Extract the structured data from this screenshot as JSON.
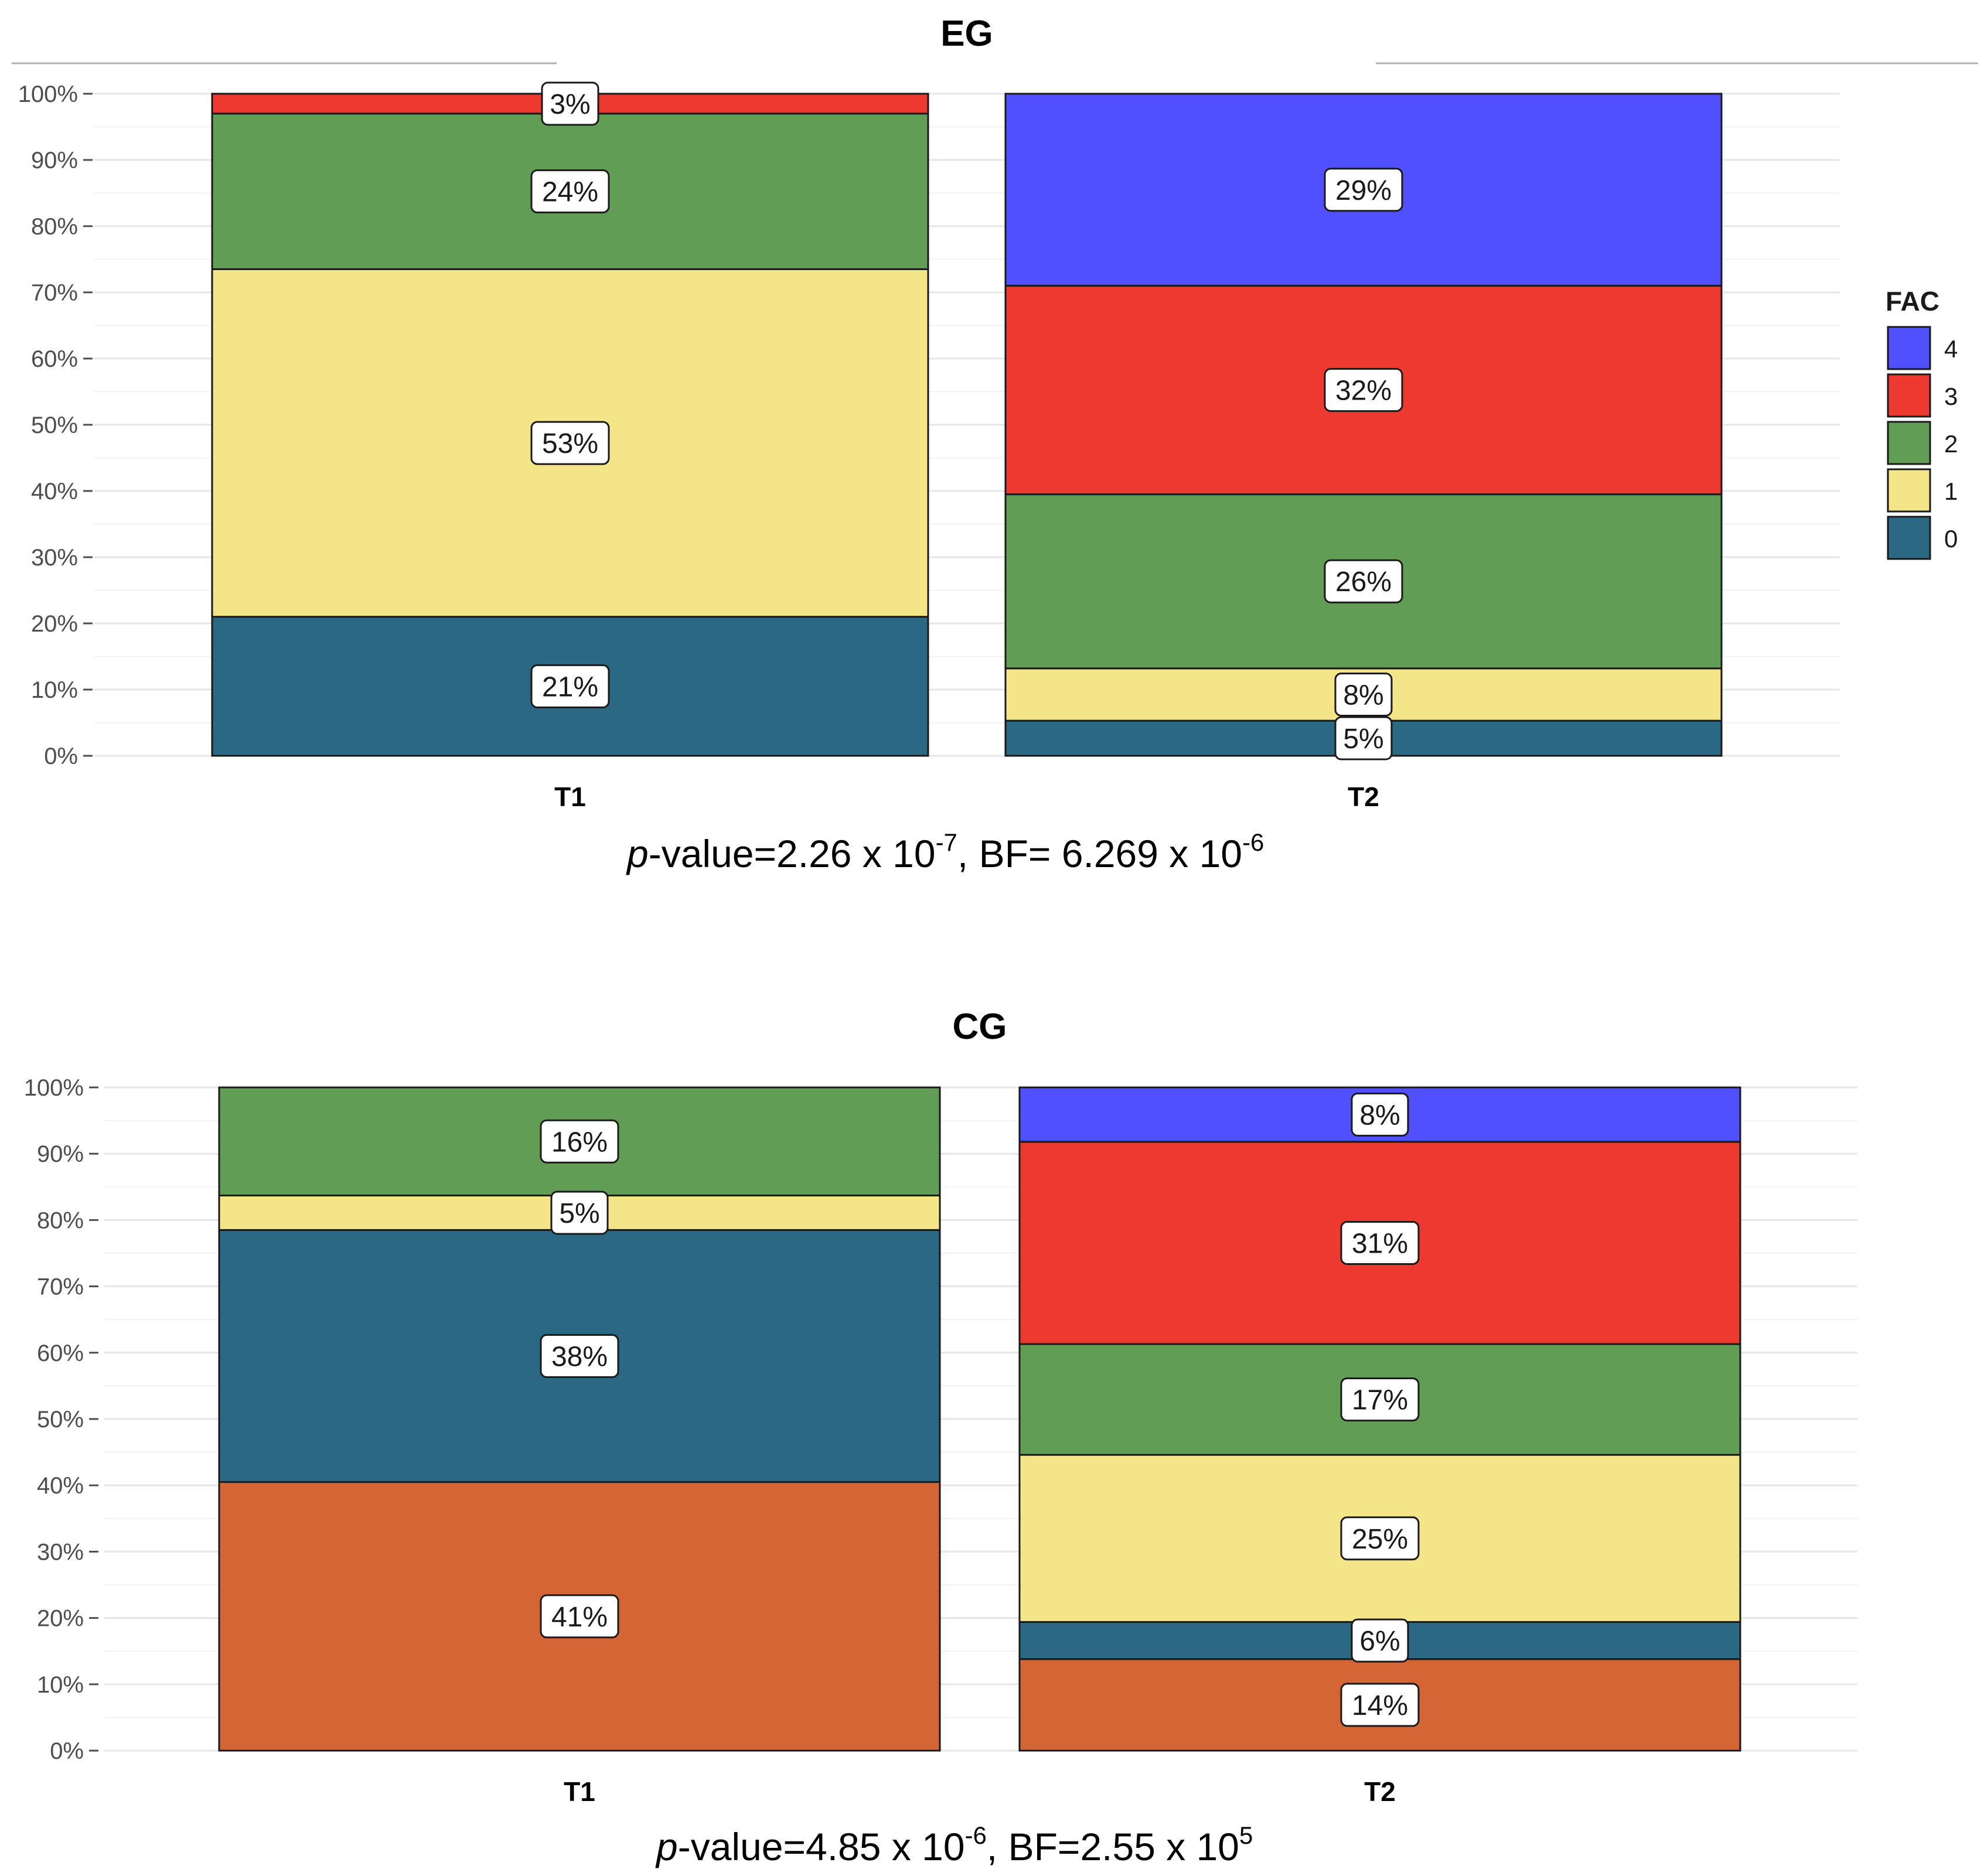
{
  "colors": {
    "FAC 4": "#5050fe",
    "FAC 3": "#ed392f",
    "FAC 2": "#629d55",
    "FAC 1": "#f4e688",
    "FAC 0": "#2a6884",
    "orange": "#d46535"
  },
  "legend": {
    "title": "FAC",
    "items": [
      {
        "key": "FAC 4",
        "label": "4"
      },
      {
        "key": "FAC 3",
        "label": "3"
      },
      {
        "key": "FAC 2",
        "label": "2"
      },
      {
        "key": "FAC 1",
        "label": "1"
      },
      {
        "key": "FAC 0",
        "label": "0"
      }
    ]
  },
  "chart_data": [
    {
      "type": "bar",
      "stacked": true,
      "title": "EG",
      "categories": [
        "T1",
        "T2"
      ],
      "ylim": [
        0,
        100
      ],
      "yticks": [
        "0%",
        "10%",
        "20%",
        "30%",
        "40%",
        "50%",
        "60%",
        "70%",
        "80%",
        "90%",
        "100%"
      ],
      "stacks": [
        [
          {
            "color_key": "FAC 0",
            "value": 21,
            "label": "21%"
          },
          {
            "color_key": "FAC 1",
            "value": 52.5,
            "label": "53%"
          },
          {
            "color_key": "FAC 2",
            "value": 23.5,
            "label": "24%"
          },
          {
            "color_key": "FAC 3",
            "value": 3,
            "label": "3%"
          }
        ],
        [
          {
            "color_key": "FAC 0",
            "value": 5.3,
            "label": "5%"
          },
          {
            "color_key": "FAC 1",
            "value": 7.9,
            "label": "8%"
          },
          {
            "color_key": "FAC 2",
            "value": 26.3,
            "label": "26%"
          },
          {
            "color_key": "FAC 3",
            "value": 31.5,
            "label": "32%"
          },
          {
            "color_key": "FAC 4",
            "value": 29,
            "label": "29%"
          }
        ]
      ],
      "caption": {
        "p": "p",
        "text1": "-value=2.26  x 10",
        "sup1": "-7",
        "text2": ", BF= 6.269  x 10",
        "sup2": "-6"
      }
    },
    {
      "type": "bar",
      "stacked": true,
      "title": "CG",
      "categories": [
        "T1",
        "T2"
      ],
      "ylim": [
        0,
        100
      ],
      "yticks": [
        "0%",
        "10%",
        "20%",
        "30%",
        "40%",
        "50%",
        "60%",
        "70%",
        "80%",
        "90%",
        "100%"
      ],
      "stacks": [
        [
          {
            "color_key": "orange",
            "value": 40.5,
            "label": "41%"
          },
          {
            "color_key": "FAC 0",
            "value": 38,
            "label": "38%"
          },
          {
            "color_key": "FAC 1",
            "value": 5.2,
            "label": "5%"
          },
          {
            "color_key": "FAC 2",
            "value": 16.3,
            "label": "16%"
          }
        ],
        [
          {
            "color_key": "orange",
            "value": 13.8,
            "label": "14%"
          },
          {
            "color_key": "FAC 0",
            "value": 5.6,
            "label": "6%"
          },
          {
            "color_key": "FAC 1",
            "value": 25.2,
            "label": "25%"
          },
          {
            "color_key": "FAC 2",
            "value": 16.7,
            "label": "17%"
          },
          {
            "color_key": "FAC 3",
            "value": 30.5,
            "label": "31%"
          },
          {
            "color_key": "FAC 4",
            "value": 8.2,
            "label": "8%"
          }
        ]
      ],
      "caption": {
        "p": "p",
        "text1": "-value=4.85  x 10",
        "sup1": "-6",
        "text2": ", BF=2.55  x 10",
        "sup2": "5"
      }
    }
  ]
}
